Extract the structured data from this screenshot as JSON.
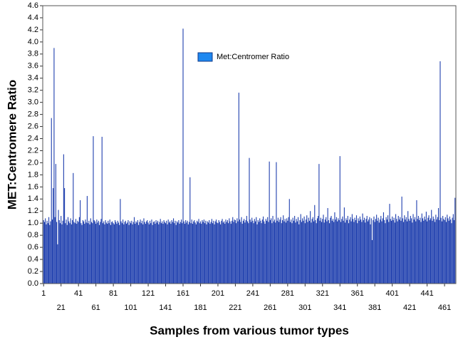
{
  "chart_data": {
    "type": "bar",
    "xlabel": "Samples from various tumor types",
    "ylabel": "MET:Centromere Ratio",
    "series": [
      {
        "name": "Met:Centromer Ratio",
        "color": "#1f3fae",
        "legend_color": "#1e88f0",
        "x": [
          1,
          2,
          3,
          4,
          5,
          6,
          7,
          8,
          9,
          10,
          11,
          12,
          13,
          14,
          15,
          16,
          17,
          18,
          19,
          20,
          21,
          22,
          23,
          24,
          25,
          26,
          27,
          28,
          29,
          30,
          31,
          32,
          33,
          34,
          35,
          36,
          37,
          38,
          39,
          40,
          41,
          42,
          43,
          44,
          45,
          46,
          47,
          48,
          49,
          50,
          51,
          52,
          53,
          54,
          55,
          56,
          57,
          58,
          59,
          60,
          61,
          62,
          63,
          64,
          65,
          66,
          67,
          68,
          69,
          70,
          71,
          72,
          73,
          74,
          75,
          76,
          77,
          78,
          79,
          80,
          81,
          82,
          83,
          84,
          85,
          86,
          87,
          88,
          89,
          90,
          91,
          92,
          93,
          94,
          95,
          96,
          97,
          98,
          99,
          100,
          101,
          102,
          103,
          104,
          105,
          106,
          107,
          108,
          109,
          110,
          111,
          112,
          113,
          114,
          115,
          116,
          117,
          118,
          119,
          120,
          121,
          122,
          123,
          124,
          125,
          126,
          127,
          128,
          129,
          130,
          131,
          132,
          133,
          134,
          135,
          136,
          137,
          138,
          139,
          140,
          141,
          142,
          143,
          144,
          145,
          146,
          147,
          148,
          149,
          150,
          151,
          152,
          153,
          154,
          155,
          156,
          157,
          158,
          159,
          160,
          161,
          162,
          163,
          164,
          165,
          166,
          167,
          168,
          169,
          170,
          171,
          172,
          173,
          174,
          175,
          176,
          177,
          178,
          179,
          180,
          181,
          182,
          183,
          184,
          185,
          186,
          187,
          188,
          189,
          190,
          191,
          192,
          193,
          194,
          195,
          196,
          197,
          198,
          199,
          200,
          201,
          202,
          203,
          204,
          205,
          206,
          207,
          208,
          209,
          210,
          211,
          212,
          213,
          214,
          215,
          216,
          217,
          218,
          219,
          220,
          221,
          222,
          223,
          224,
          225,
          226,
          227,
          228,
          229,
          230,
          231,
          232,
          233,
          234,
          235,
          236,
          237,
          238,
          239,
          240,
          241,
          242,
          243,
          244,
          245,
          246,
          247,
          248,
          249,
          250,
          251,
          252,
          253,
          254,
          255,
          256,
          257,
          258,
          259,
          260,
          261,
          262,
          263,
          264,
          265,
          266,
          267,
          268,
          269,
          270,
          271,
          272,
          273,
          274,
          275,
          276,
          277,
          278,
          279,
          280,
          281,
          282,
          283,
          284,
          285,
          286,
          287,
          288,
          289,
          290,
          291,
          292,
          293,
          294,
          295,
          296,
          297,
          298,
          299,
          300,
          301,
          302,
          303,
          304,
          305,
          306,
          307,
          308,
          309,
          310,
          311,
          312,
          313,
          314,
          315,
          316,
          317,
          318,
          319,
          320,
          321,
          322,
          323,
          324,
          325,
          326,
          327,
          328,
          329,
          330,
          331,
          332,
          333,
          334,
          335,
          336,
          337,
          338,
          339,
          340,
          341,
          342,
          343,
          344,
          345,
          346,
          347,
          348,
          349,
          350,
          351,
          352,
          353,
          354,
          355,
          356,
          357,
          358,
          359,
          360,
          361,
          362,
          363,
          364,
          365,
          366,
          367,
          368,
          369,
          370,
          371,
          372,
          373,
          374,
          375,
          376,
          377,
          378,
          379,
          380,
          381,
          382,
          383,
          384,
          385,
          386,
          387,
          388,
          389,
          390,
          391,
          392,
          393,
          394,
          395,
          396,
          397,
          398,
          399,
          400,
          401,
          402,
          403,
          404,
          405,
          406,
          407,
          408,
          409,
          410,
          411,
          412,
          413,
          414,
          415,
          416,
          417,
          418,
          419,
          420,
          421,
          422,
          423,
          424,
          425,
          426,
          427,
          428,
          429,
          430,
          431,
          432,
          433,
          434,
          435,
          436,
          437,
          438,
          439,
          440,
          441,
          442,
          443,
          444,
          445,
          446,
          447,
          448,
          449,
          450,
          451,
          452,
          453,
          454,
          455,
          456,
          457,
          458,
          459,
          460,
          461,
          462,
          463,
          464,
          465,
          466,
          467,
          468,
          469,
          470,
          471,
          472,
          473
        ],
        "values": [
          1.05,
          1.02,
          1.08,
          0.98,
          1.04,
          1.0,
          1.1,
          0.97,
          1.03,
          2.74,
          1.06,
          1.58,
          3.9,
          1.1,
          1.98,
          1.02,
          0.65,
          1.22,
          1.05,
          1.0,
          1.12,
          0.98,
          1.04,
          2.14,
          1.58,
          1.0,
          1.06,
          0.97,
          1.1,
          1.03,
          1.0,
          1.08,
          0.98,
          1.05,
          1.83,
          1.02,
          1.0,
          1.07,
          0.99,
          1.04,
          1.02,
          1.1,
          1.38,
          1.0,
          0.97,
          1.05,
          1.03,
          0.99,
          1.06,
          1.01,
          1.45,
          1.0,
          1.04,
          0.98,
          1.08,
          1.02,
          1.0,
          2.44,
          1.05,
          1.03,
          0.99,
          1.06,
          1.01,
          1.04,
          0.97,
          1.02,
          1.07,
          2.43,
          1.0,
          1.03,
          0.98,
          1.05,
          1.01,
          0.99,
          1.04,
          1.0,
          1.06,
          0.97,
          1.02,
          1.03,
          1.0,
          0.98,
          1.05,
          1.02,
          0.99,
          1.04,
          1.01,
          0.97,
          1.4,
          1.03,
          1.0,
          1.06,
          0.98,
          1.02,
          1.04,
          0.99,
          1.01,
          1.05,
          0.97,
          1.03,
          1.0,
          1.04,
          0.98,
          1.02,
          1.1,
          0.99,
          1.03,
          1.01,
          1.05,
          0.97,
          1.02,
          1.06,
          1.0,
          1.04,
          0.98,
          1.08,
          1.02,
          0.99,
          1.03,
          1.05,
          1.01,
          0.98,
          1.04,
          1.0,
          1.06,
          0.97,
          1.02,
          1.03,
          0.99,
          1.05,
          1.01,
          1.04,
          0.98,
          1.02,
          1.07,
          1.0,
          1.03,
          0.99,
          1.05,
          1.02,
          1.0,
          1.04,
          0.98,
          1.06,
          1.01,
          1.03,
          0.99,
          1.05,
          1.02,
          1.08,
          1.0,
          1.04,
          0.97,
          1.03,
          1.01,
          1.05,
          0.99,
          1.02,
          1.06,
          1.0,
          4.22,
          1.03,
          0.99,
          1.05,
          1.01,
          1.04,
          0.98,
          1.02,
          1.76,
          1.0,
          1.06,
          0.99,
          1.03,
          1.05,
          1.01,
          0.98,
          1.04,
          1.02,
          1.07,
          1.0,
          1.03,
          0.99,
          1.05,
          1.02,
          1.06,
          1.0,
          1.04,
          0.98,
          1.03,
          1.01,
          1.05,
          0.99,
          1.02,
          1.07,
          1.0,
          1.04,
          0.98,
          1.03,
          1.06,
          1.01,
          1.0,
          1.05,
          1.02,
          0.98,
          1.04,
          1.07,
          1.01,
          1.03,
          0.99,
          1.06,
          1.02,
          1.05,
          1.0,
          1.08,
          1.03,
          0.99,
          1.04,
          1.1,
          1.02,
          1.06,
          1.05,
          1.0,
          1.08,
          1.03,
          3.16,
          1.06,
          1.02,
          1.1,
          0.99,
          1.04,
          1.07,
          1.01,
          1.05,
          1.12,
          1.03,
          1.0,
          2.08,
          1.06,
          1.02,
          1.09,
          1.04,
          1.0,
          1.07,
          1.03,
          1.1,
          0.98,
          1.05,
          1.02,
          1.08,
          1.04,
          1.0,
          1.06,
          1.11,
          1.03,
          0.99,
          1.07,
          1.04,
          1.1,
          1.02,
          2.02,
          1.05,
          1.08,
          1.0,
          1.12,
          1.03,
          1.06,
          1.01,
          2.01,
          1.04,
          1.09,
          1.02,
          1.06,
          1.1,
          1.0,
          1.05,
          1.13,
          1.03,
          1.07,
          1.01,
          1.08,
          1.04,
          1.1,
          1.4,
          1.02,
          1.06,
          1.0,
          1.09,
          1.04,
          1.12,
          1.01,
          1.07,
          1.03,
          1.1,
          0.98,
          1.05,
          1.15,
          1.02,
          1.08,
          1.04,
          1.11,
          1.0,
          1.06,
          1.13,
          1.02,
          1.09,
          1.04,
          1.2,
          1.01,
          1.07,
          1.1,
          1.03,
          1.3,
          1.05,
          1.0,
          1.08,
          1.12,
          1.98,
          1.04,
          1.09,
          1.02,
          1.07,
          1.14,
          1.01,
          1.06,
          1.1,
          1.03,
          1.25,
          1.05,
          1.0,
          1.09,
          1.12,
          1.04,
          1.07,
          1.02,
          1.18,
          1.06,
          1.1,
          1.03,
          1.08,
          1.05,
          2.11,
          1.02,
          1.07,
          1.11,
          1.04,
          1.26,
          1.01,
          1.08,
          1.05,
          1.12,
          1.0,
          1.06,
          1.1,
          1.03,
          1.15,
          1.07,
          1.02,
          1.09,
          1.05,
          1.13,
          1.0,
          1.08,
          1.04,
          1.11,
          1.06,
          1.02,
          1.16,
          1.05,
          1.09,
          1.01,
          1.07,
          1.12,
          1.03,
          1.06,
          1.1,
          0.98,
          1.08,
          0.72,
          1.05,
          1.11,
          1.02,
          1.07,
          1.14,
          1.04,
          1.09,
          1.01,
          1.06,
          1.12,
          1.03,
          1.08,
          1.18,
          1.05,
          1.0,
          1.1,
          1.06,
          1.13,
          1.02,
          1.32,
          1.07,
          1.04,
          1.11,
          1.05,
          1.09,
          1.01,
          1.15,
          1.07,
          1.03,
          1.12,
          1.06,
          1.1,
          1.04,
          1.44,
          1.08,
          1.02,
          1.13,
          1.06,
          1.1,
          1.03,
          1.2,
          1.07,
          1.04,
          1.12,
          1.08,
          1.01,
          1.15,
          1.06,
          1.1,
          1.03,
          1.38,
          1.07,
          1.12,
          1.05,
          1.09,
          1.02,
          1.16,
          1.08,
          1.04,
          1.11,
          1.06,
          1.19,
          1.03,
          1.09,
          1.13,
          1.05,
          1.08,
          1.22,
          1.04,
          1.11,
          1.07,
          1.02,
          1.14,
          1.06,
          1.1,
          1.25,
          1.05,
          3.68,
          1.09,
          1.03,
          1.12,
          1.07,
          1.05,
          1.1,
          1.02,
          1.14,
          1.08,
          1.04,
          1.11,
          1.06,
          1.0,
          1.09,
          1.15,
          1.05,
          1.42
        ]
      }
    ],
    "xlim": [
      0,
      474
    ],
    "xticks": [
      1,
      21,
      41,
      61,
      81,
      101,
      121,
      141,
      161,
      181,
      201,
      221,
      241,
      261,
      281,
      301,
      321,
      341,
      361,
      381,
      401,
      421,
      441,
      461
    ],
    "ylim": [
      0,
      4.6
    ],
    "yticks": [
      {
        "value": 0,
        "label": "0.0"
      },
      0.2,
      0.4,
      0.6,
      0.8,
      {
        "value": 1,
        "label": "1.0"
      },
      1.2,
      1.4,
      1.6,
      1.8,
      {
        "value": 2,
        "label": "2.0"
      },
      2.2,
      2.4,
      2.6,
      2.8,
      {
        "value": 3,
        "label": "3.0"
      },
      3.2,
      3.4,
      3.6,
      3.8,
      {
        "value": 4,
        "label": "4.0"
      },
      4.2,
      4.4,
      4.6
    ]
  }
}
